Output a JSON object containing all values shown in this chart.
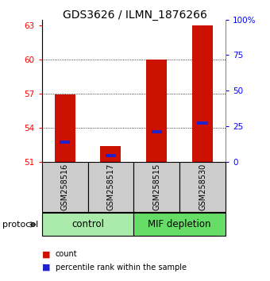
{
  "title": "GDS3626 / ILMN_1876266",
  "samples": [
    "GSM258516",
    "GSM258517",
    "GSM258515",
    "GSM258530"
  ],
  "group_labels": [
    "control",
    "MIF depletion"
  ],
  "bar_color": "#CC1100",
  "marker_color": "#2222CC",
  "ylim_left": [
    51,
    63.5
  ],
  "ylim_right": [
    0,
    100
  ],
  "yticks_left": [
    51,
    54,
    57,
    60,
    63
  ],
  "yticks_right": [
    0,
    25,
    50,
    75,
    100
  ],
  "count_values": [
    56.9,
    52.4,
    60.0,
    63.0
  ],
  "percentile_values": [
    52.7,
    51.5,
    53.6,
    54.4
  ],
  "bar_base": 51,
  "bg_color": "#ffffff",
  "sample_bg_color": "#cccccc",
  "ctrl_color": "#aaeaaa",
  "mif_color": "#66dd66",
  "sample_label_fontsize": 7,
  "title_fontsize": 10,
  "legend_fontsize": 7,
  "group_label_fontsize": 8.5,
  "protocol_fontsize": 8
}
